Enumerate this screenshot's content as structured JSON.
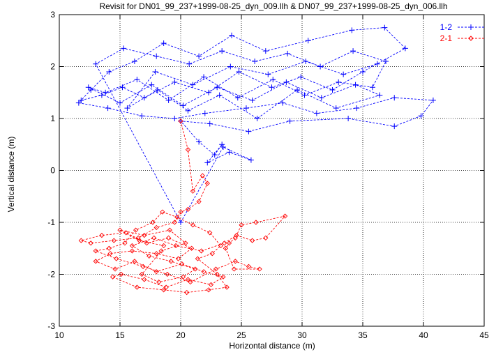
{
  "chart_data": {
    "type": "scatter",
    "title": "Revisit for DN01_99_237+1999-08-25_dyn_009.llh & DN07_99_237+1999-08-25_dyn_006.llh",
    "xlabel": "Horizontal distance (m)",
    "ylabel": "Vertical distance (m)",
    "xlim": [
      10,
      45
    ],
    "ylim": [
      -3,
      3
    ],
    "xticks": [
      "10",
      "15",
      "20",
      "25",
      "30",
      "35",
      "40",
      "45"
    ],
    "yticks": [
      "-3",
      "-2",
      "-1",
      "0",
      "1",
      "2",
      "3"
    ],
    "grid": true,
    "legend_position": "top-right",
    "series": [
      {
        "name": "1-2",
        "color": "#0000ff",
        "marker": "plus",
        "line": "dashed",
        "points": [
          [
            11.8,
            1.35
          ],
          [
            13.5,
            1.45
          ],
          [
            15.2,
            1.6
          ],
          [
            17.0,
            1.4
          ],
          [
            19.5,
            1.7
          ],
          [
            22.3,
            1.5
          ],
          [
            24.8,
            1.9
          ],
          [
            27.5,
            1.6
          ],
          [
            29.9,
            1.8
          ],
          [
            32.5,
            1.55
          ],
          [
            35.0,
            1.9
          ],
          [
            38.5,
            2.35
          ],
          [
            36.8,
            2.75
          ],
          [
            34.1,
            2.7
          ],
          [
            30.5,
            2.5
          ],
          [
            27.0,
            2.3
          ],
          [
            24.2,
            2.6
          ],
          [
            21.5,
            2.2
          ],
          [
            18.6,
            2.45
          ],
          [
            16.2,
            2.1
          ],
          [
            14.1,
            1.9
          ],
          [
            12.6,
            1.55
          ],
          [
            11.6,
            1.3
          ],
          [
            14.0,
            1.2
          ],
          [
            16.8,
            1.05
          ],
          [
            19.5,
            1.0
          ],
          [
            22.0,
            1.1
          ],
          [
            25.4,
            1.2
          ],
          [
            28.4,
            1.3
          ],
          [
            31.2,
            1.1
          ],
          [
            34.5,
            1.2
          ],
          [
            37.6,
            1.4
          ],
          [
            40.8,
            1.35
          ],
          [
            39.8,
            1.05
          ],
          [
            37.6,
            0.85
          ],
          [
            33.8,
            1.0
          ],
          [
            29.0,
            0.95
          ],
          [
            25.6,
            0.75
          ],
          [
            22.4,
            0.9
          ],
          [
            20.0,
            0.95
          ],
          [
            21.5,
            0.55
          ],
          [
            22.8,
            0.3
          ],
          [
            23.4,
            0.5
          ],
          [
            22.2,
            0.15
          ],
          [
            24.0,
            0.35
          ],
          [
            25.8,
            0.2
          ],
          [
            23.5,
            0.45
          ],
          [
            20.0,
            -1.0
          ],
          [
            13.0,
            2.05
          ],
          [
            15.3,
            2.35
          ],
          [
            18.0,
            2.2
          ],
          [
            20.7,
            2.05
          ],
          [
            23.4,
            2.3
          ],
          [
            26.1,
            2.1
          ],
          [
            28.8,
            2.25
          ],
          [
            31.5,
            2.0
          ],
          [
            34.2,
            2.3
          ],
          [
            36.9,
            2.1
          ],
          [
            35.8,
            1.6
          ],
          [
            33.0,
            1.7
          ],
          [
            30.2,
            1.45
          ],
          [
            27.6,
            1.75
          ],
          [
            24.7,
            1.4
          ],
          [
            21.9,
            1.8
          ],
          [
            19.0,
            1.35
          ],
          [
            16.4,
            1.75
          ],
          [
            13.8,
            1.5
          ],
          [
            12.4,
            1.6
          ],
          [
            15.0,
            1.3
          ],
          [
            17.6,
            1.65
          ],
          [
            20.2,
            1.25
          ],
          [
            23.0,
            1.6
          ],
          [
            25.9,
            1.35
          ],
          [
            28.7,
            1.7
          ],
          [
            31.6,
            1.4
          ],
          [
            34.4,
            1.65
          ],
          [
            36.4,
            1.45
          ],
          [
            32.8,
            1.2
          ],
          [
            29.6,
            1.55
          ],
          [
            26.3,
            1.0
          ],
          [
            23.2,
            1.45
          ],
          [
            20.6,
            1.15
          ],
          [
            18.1,
            1.55
          ],
          [
            15.6,
            1.2
          ],
          [
            17.9,
            1.9
          ],
          [
            21.0,
            1.65
          ],
          [
            24.1,
            2.0
          ],
          [
            27.2,
            1.85
          ],
          [
            30.3,
            2.1
          ],
          [
            33.4,
            1.85
          ],
          [
            36.2,
            2.05
          ]
        ]
      },
      {
        "name": "2-1",
        "color": "#ff0000",
        "marker": "diamond",
        "line": "dashed",
        "points": [
          [
            20.0,
            0.95
          ],
          [
            20.6,
            0.4
          ],
          [
            21.0,
            -0.4
          ],
          [
            21.8,
            -0.1
          ],
          [
            22.2,
            -0.25
          ],
          [
            21.5,
            -0.6
          ],
          [
            20.6,
            -0.75
          ],
          [
            20.0,
            -0.8
          ],
          [
            19.5,
            -1.0
          ],
          [
            18.0,
            -1.1
          ],
          [
            16.5,
            -1.3
          ],
          [
            14.5,
            -1.35
          ],
          [
            12.6,
            -1.4
          ],
          [
            11.8,
            -1.35
          ],
          [
            13.5,
            -1.25
          ],
          [
            15.5,
            -1.2
          ],
          [
            17.2,
            -1.4
          ],
          [
            19.0,
            -1.3
          ],
          [
            20.9,
            -1.5
          ],
          [
            19.8,
            -1.7
          ],
          [
            18.0,
            -1.6
          ],
          [
            16.0,
            -1.55
          ],
          [
            14.2,
            -1.6
          ],
          [
            13.0,
            -1.75
          ],
          [
            14.6,
            -1.9
          ],
          [
            16.2,
            -1.75
          ],
          [
            18.0,
            -1.95
          ],
          [
            20.1,
            -1.8
          ],
          [
            21.9,
            -1.95
          ],
          [
            23.5,
            -2.05
          ],
          [
            22.5,
            -2.2
          ],
          [
            20.6,
            -2.1
          ],
          [
            18.8,
            -2.25
          ],
          [
            17.0,
            -2.1
          ],
          [
            15.1,
            -2.0
          ],
          [
            14.4,
            -2.05
          ],
          [
            16.4,
            -2.25
          ],
          [
            18.6,
            -2.3
          ],
          [
            20.5,
            -2.35
          ],
          [
            22.3,
            -2.3
          ],
          [
            23.8,
            -2.25
          ],
          [
            23.0,
            -2.0
          ],
          [
            21.4,
            -1.7
          ],
          [
            22.6,
            -1.6
          ],
          [
            23.3,
            -1.45
          ],
          [
            22.4,
            -1.2
          ],
          [
            21.0,
            -1.05
          ],
          [
            19.7,
            -0.9
          ],
          [
            18.5,
            -0.8
          ],
          [
            17.7,
            -1.0
          ],
          [
            16.3,
            -1.15
          ],
          [
            15.4,
            -1.4
          ],
          [
            14.1,
            -1.5
          ],
          [
            13.0,
            -1.55
          ],
          [
            14.7,
            -1.7
          ],
          [
            16.9,
            -1.85
          ],
          [
            18.9,
            -2.0
          ],
          [
            20.8,
            -2.15
          ],
          [
            22.9,
            -1.9
          ],
          [
            24.5,
            -1.75
          ],
          [
            25.6,
            -1.85
          ],
          [
            26.5,
            -1.9
          ],
          [
            24.4,
            -1.9
          ],
          [
            23.7,
            -1.5
          ],
          [
            24.0,
            -1.4
          ],
          [
            24.5,
            -1.3
          ],
          [
            25.0,
            -1.05
          ],
          [
            26.2,
            -1.0
          ],
          [
            28.6,
            -0.88
          ],
          [
            27.0,
            -1.3
          ],
          [
            25.9,
            -1.35
          ],
          [
            24.6,
            -1.25
          ],
          [
            23.6,
            -1.4
          ],
          [
            21.7,
            -1.55
          ],
          [
            19.6,
            -1.45
          ],
          [
            17.8,
            -1.3
          ],
          [
            16.0,
            -1.45
          ],
          [
            17.4,
            -1.65
          ],
          [
            19.2,
            -1.75
          ],
          [
            21.2,
            -1.9
          ],
          [
            20.2,
            -2.05
          ],
          [
            18.2,
            -2.15
          ],
          [
            16.8,
            -2.0
          ],
          [
            18.4,
            -1.55
          ],
          [
            20.4,
            -1.4
          ],
          [
            19.1,
            -1.15
          ],
          [
            17.0,
            -1.25
          ],
          [
            15.0,
            -1.15
          ],
          [
            16.6,
            -1.35
          ],
          [
            18.6,
            -1.45
          ]
        ]
      }
    ]
  }
}
